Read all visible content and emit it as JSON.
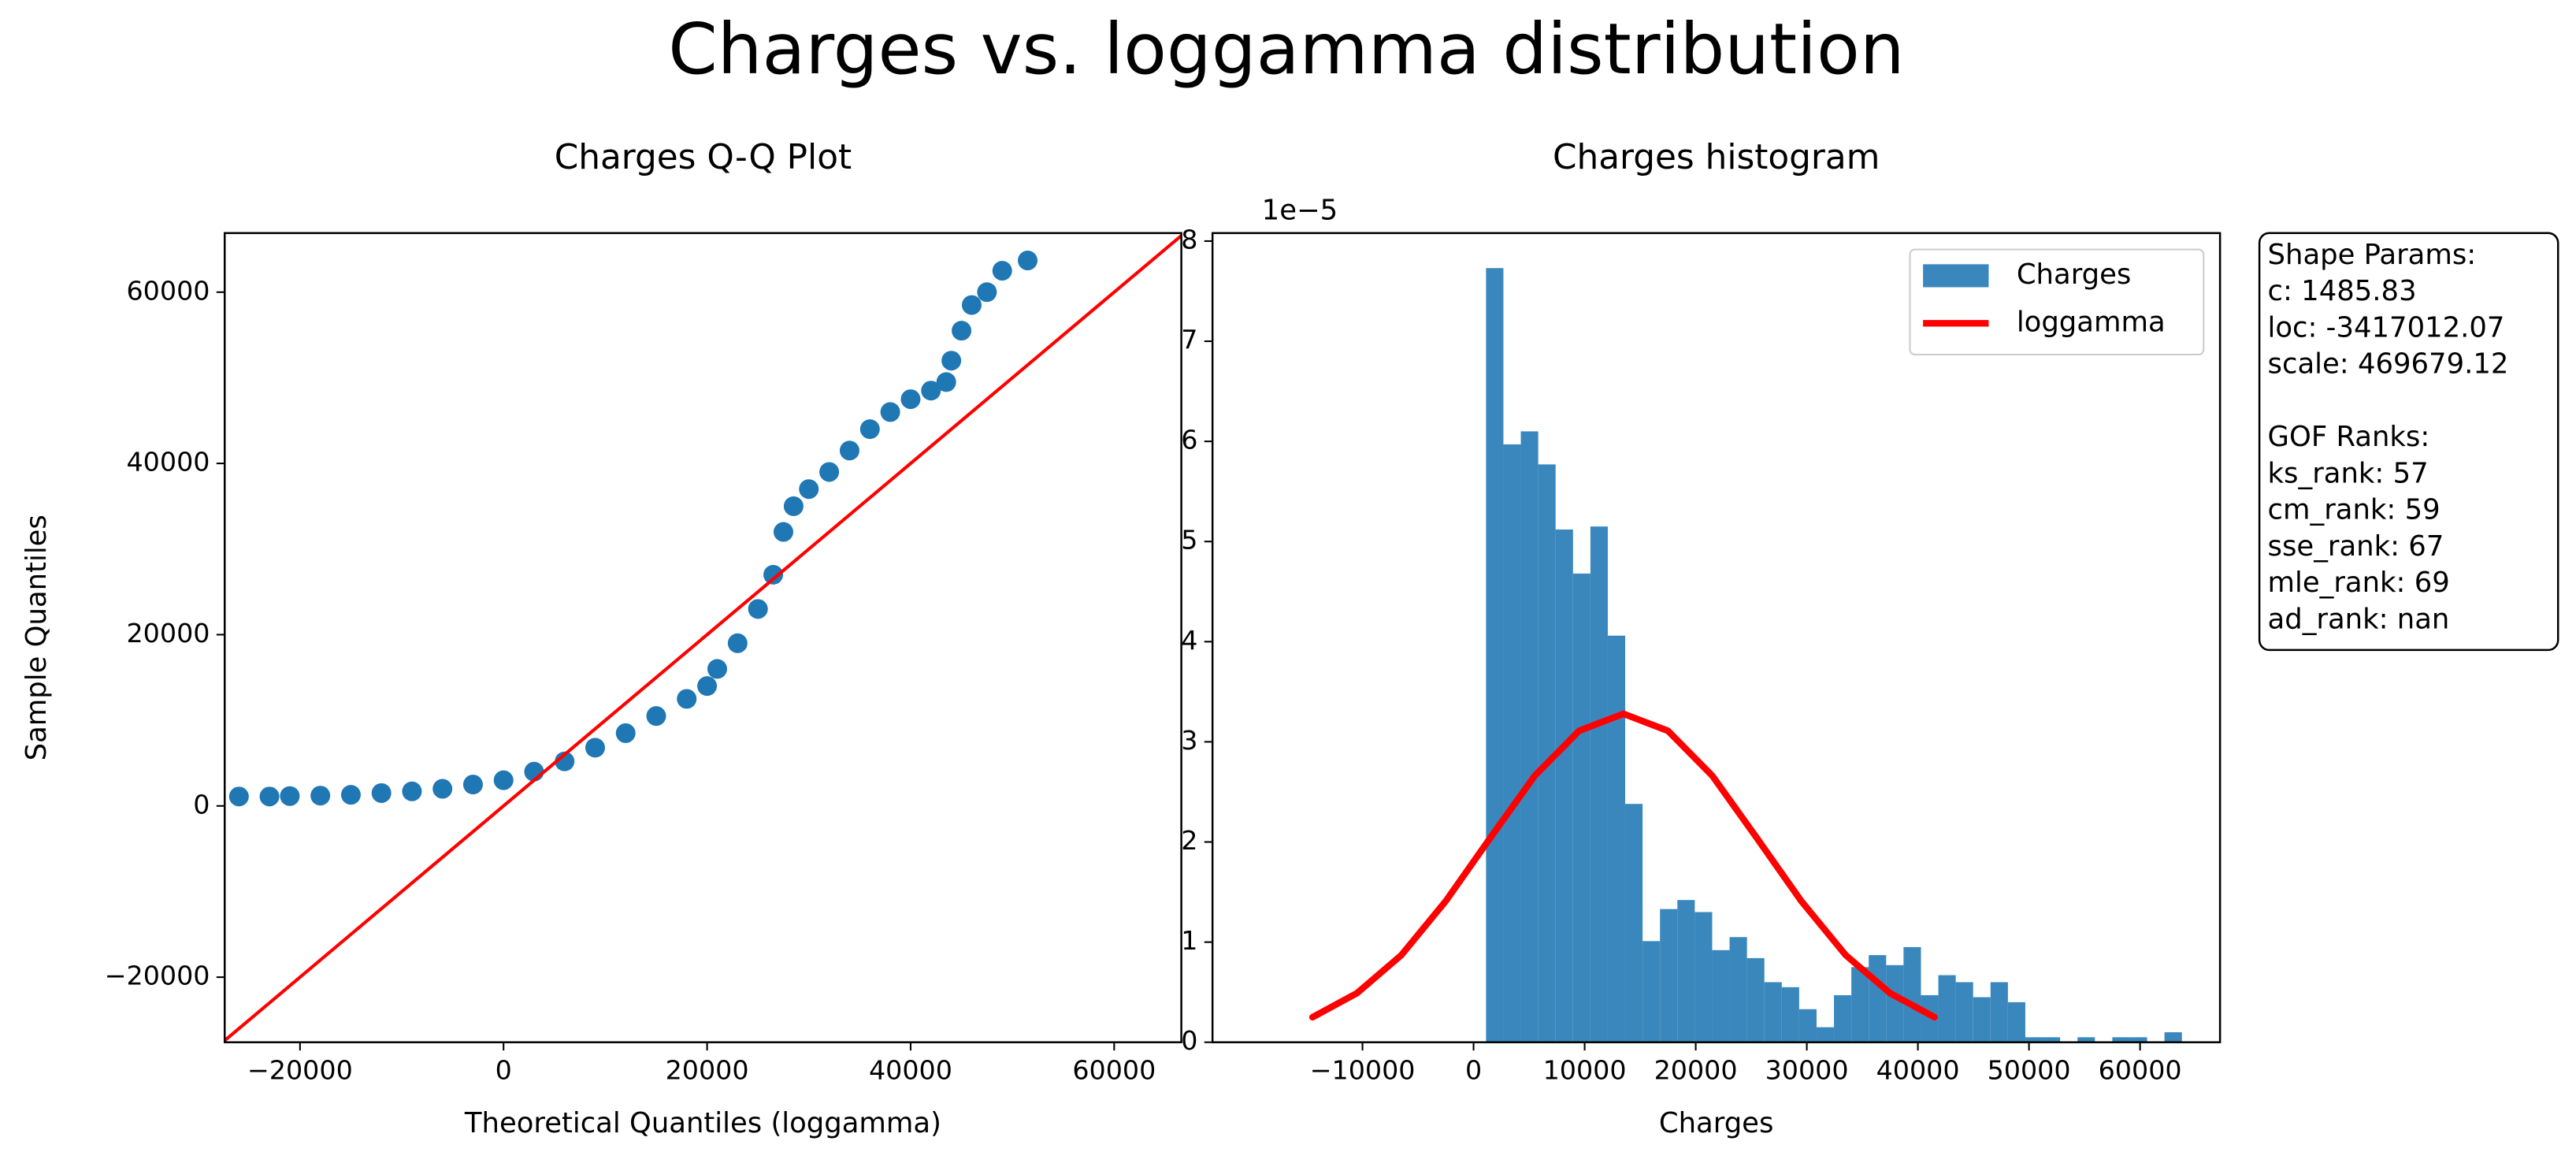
{
  "title": "Charges vs. loggamma distribution",
  "chart_data": [
    {
      "type": "scatter",
      "title": "Charges Q-Q Plot",
      "xlabel": "Theoretical Quantiles (loggamma)",
      "ylabel": "Sample Quantiles",
      "color": "#1f77b4",
      "x": [
        -26000,
        -23000,
        -21000,
        -18000,
        -15000,
        -12000,
        -9000,
        -6000,
        -3000,
        0,
        3000,
        6000,
        9000,
        12000,
        15000,
        18000,
        20000,
        21000,
        23000,
        25000,
        26500,
        27500,
        28500,
        30000,
        32000,
        34000,
        36000,
        38000,
        40000,
        42000,
        43500,
        44000,
        45000,
        46000,
        47500,
        49000,
        51500
      ],
      "values": [
        1100,
        1100,
        1150,
        1200,
        1300,
        1500,
        1700,
        2000,
        2500,
        3000,
        4000,
        5200,
        6800,
        8500,
        10500,
        12500,
        14000,
        16000,
        19000,
        23000,
        27000,
        32000,
        35000,
        37000,
        39000,
        41500,
        44000,
        46000,
        47500,
        48500,
        49500,
        52000,
        55500,
        58500,
        60000,
        62500,
        63700
      ],
      "reference_line": {
        "color": "#ff0000",
        "x": [
          -27500,
          66700
        ],
        "y": [
          -27500,
          66700
        ]
      },
      "xlim": [
        -27400,
        66600
      ],
      "ylim": [
        -27600,
        66900
      ],
      "xticks": [
        {
          "value": -20000,
          "label": "−20000"
        },
        0,
        20000,
        40000,
        60000
      ],
      "yticks": [
        {
          "value": -20000,
          "label": "−20000"
        },
        0,
        20000,
        40000,
        60000
      ]
    },
    {
      "type": "histogram",
      "title": "Charges histogram",
      "xlabel": "Charges",
      "y_offset_label": "1e−5",
      "name": "Charges",
      "color": "#3a87bd",
      "bins": [
        1122,
        2688,
        4254,
        5820,
        7386,
        8953,
        10519,
        12085,
        13651,
        15217,
        16783,
        18349,
        19915,
        21481,
        23047,
        24614,
        26180,
        27746,
        29312,
        30878,
        32444,
        34010,
        35576,
        37142,
        38708,
        40275,
        41841,
        43407,
        44973,
        46539,
        48105,
        49671,
        51237,
        52803,
        54369,
        55936,
        57502,
        59068,
        60634,
        62200,
        63766
      ],
      "values": [
        7.73,
        5.97,
        6.1,
        5.77,
        5.12,
        4.68,
        5.15,
        4.06,
        2.38,
        1.01,
        1.33,
        1.42,
        1.3,
        0.92,
        1.05,
        0.84,
        0.6,
        0.55,
        0.33,
        0.15,
        0.47,
        0.75,
        0.87,
        0.77,
        0.95,
        0.47,
        0.67,
        0.6,
        0.45,
        0.6,
        0.4,
        0.05,
        0.05,
        0,
        0.05,
        0,
        0.05,
        0.05,
        0,
        0.1
      ],
      "curve": {
        "name": "loggamma",
        "color": "#ff0000",
        "x": [
          -14500,
          -10500,
          -6500,
          -2500,
          1500,
          5500,
          9500,
          13500,
          17500,
          21500,
          25500,
          29500,
          33500,
          37500,
          41500
        ],
        "y": [
          0.25,
          0.49,
          0.87,
          1.41,
          2.04,
          2.66,
          3.11,
          3.28,
          3.11,
          2.66,
          2.04,
          1.41,
          0.87,
          0.49,
          0.25
        ]
      },
      "legend": "upper right",
      "xlim": [
        -23500,
        67200
      ],
      "ylim": [
        0,
        8.08
      ],
      "xticks": [
        {
          "value": -10000,
          "label": "−10000"
        },
        0,
        10000,
        20000,
        30000,
        40000,
        50000,
        60000
      ],
      "yticks": [
        0,
        1,
        2,
        3,
        4,
        5,
        6,
        7,
        8
      ],
      "text_box": [
        [
          "Shape Params:",
          "c: 1485.83",
          "loc: -3417012.07",
          "scale: 469679.12"
        ],
        [
          "GOF Ranks:",
          "ks_rank: 57",
          "cm_rank: 59",
          "sse_rank: 67",
          "mle_rank: 69",
          "ad_rank: nan"
        ]
      ]
    }
  ]
}
